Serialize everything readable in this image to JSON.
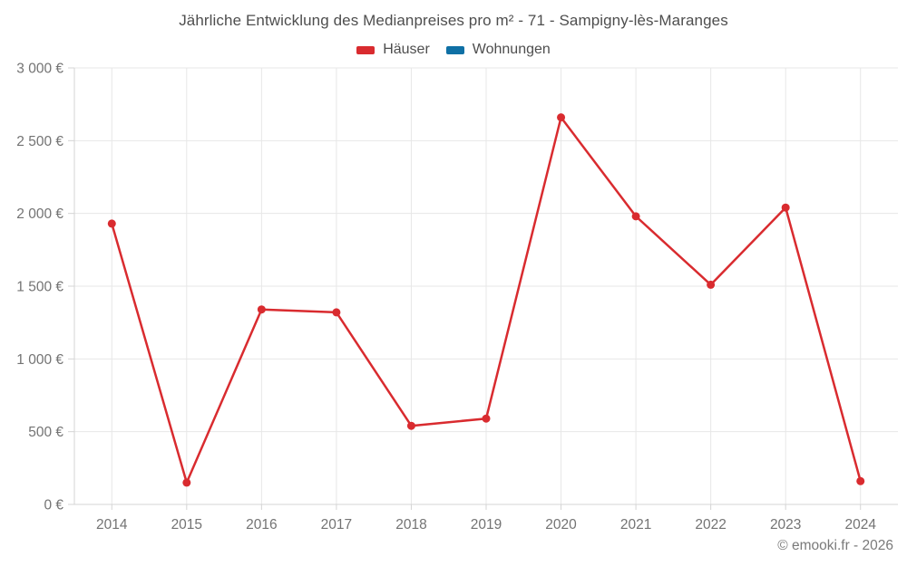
{
  "title": "Jährliche Entwicklung des Medianpreises pro m² - 71 - Sampigny-lès-Maranges",
  "legend": {
    "items": [
      {
        "label": "Häuser",
        "color": "#d92b2f"
      },
      {
        "label": "Wohnungen",
        "color": "#0f70a5"
      }
    ]
  },
  "footer": {
    "copyright": "© emooki.fr - 2026"
  },
  "chart_data": {
    "type": "line",
    "title": "Jährliche Entwicklung des Medianpreises pro m² - 71 - Sampigny-lès-Maranges",
    "categories": [
      "2014",
      "2015",
      "2016",
      "2017",
      "2018",
      "2019",
      "2020",
      "2021",
      "2022",
      "2023",
      "2024"
    ],
    "series": [
      {
        "name": "Häuser",
        "color": "#d92b2f",
        "values": [
          1930,
          150,
          1340,
          1320,
          540,
          590,
          2660,
          1980,
          1510,
          2040,
          160
        ]
      },
      {
        "name": "Wohnungen",
        "color": "#0f70a5",
        "values": []
      }
    ],
    "xlabel": "",
    "ylabel": "",
    "ylim": [
      0,
      3000
    ],
    "ytick_step": 500,
    "ytick_labels": [
      "0 €",
      "500 €",
      "1 000 €",
      "1 500 €",
      "2 000 €",
      "2 500 €",
      "3 000 €"
    ],
    "grid": true,
    "legend_position": "top",
    "unit": "€"
  },
  "colors": {
    "grid": "#e7e7e7",
    "axis": "#d4d4d4",
    "tick_label": "#737373",
    "title_text": "#4e4e4e",
    "legend_text": "#4e4e4e",
    "footer_text": "#7a7a7a"
  }
}
